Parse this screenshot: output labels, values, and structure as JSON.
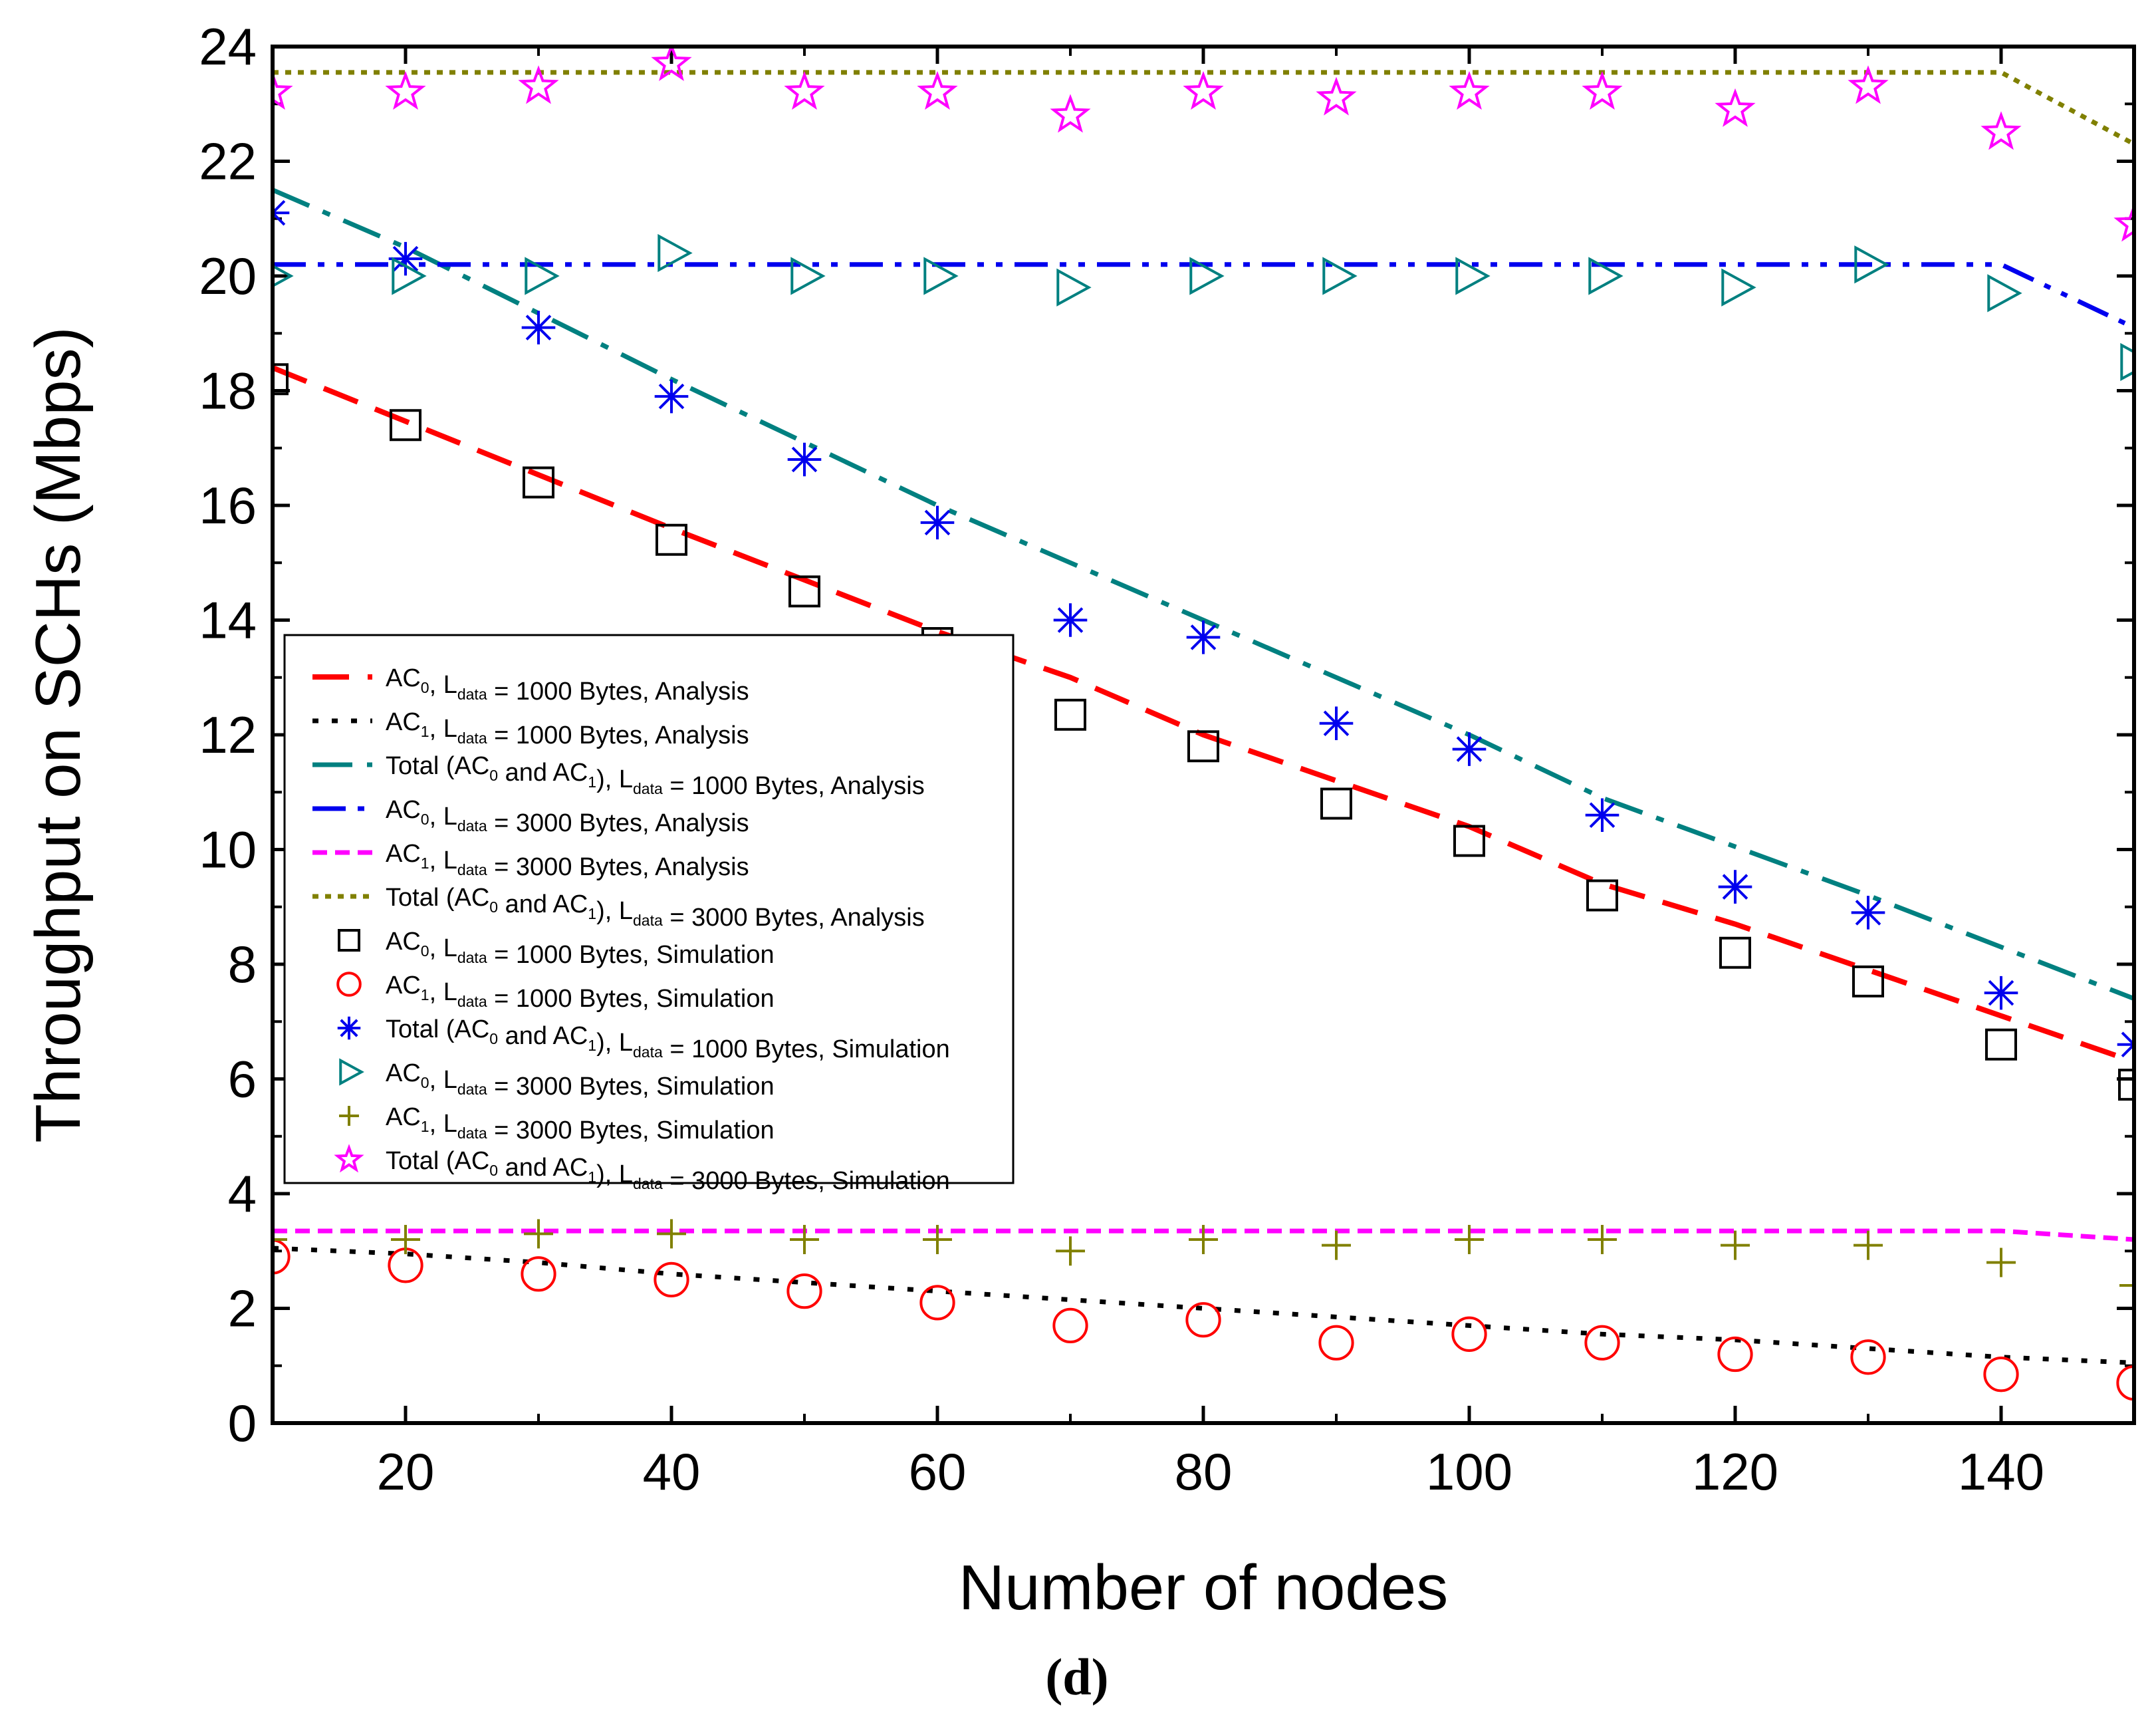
{
  "chart_data": {
    "type": "line",
    "title": "",
    "caption": "(d)",
    "xlabel": "Number of nodes",
    "ylabel": "Throughput on SCHs (Mbps)",
    "xlim": [
      10,
      150
    ],
    "ylim": [
      0,
      24
    ],
    "xticks": [
      20,
      40,
      60,
      80,
      100,
      120,
      140
    ],
    "yticks": [
      0,
      2,
      4,
      6,
      8,
      10,
      12,
      14,
      16,
      18,
      20,
      22,
      24
    ],
    "legend_position": "center-left",
    "x_sim": [
      10,
      20,
      30,
      40,
      50,
      60,
      70,
      80,
      90,
      100,
      110,
      120,
      130,
      140,
      150
    ],
    "series": [
      {
        "id": "ac0_1000_analysis",
        "kind": "line",
        "dash": "dash",
        "color": "#ff0000",
        "legend": {
          "pre": "AC",
          "sub1": "0",
          "mid": ",  L",
          "sub2": "data",
          "post": " = 1000 Bytes, Analysis"
        },
        "x": [
          10,
          40,
          60,
          70,
          80,
          90,
          100,
          110,
          120,
          140,
          150
        ],
        "y": [
          18.4,
          15.6,
          13.8,
          13.0,
          12.0,
          11.2,
          10.4,
          9.4,
          8.7,
          7.1,
          6.3
        ]
      },
      {
        "id": "ac1_1000_analysis",
        "kind": "line",
        "dash": "dot",
        "color": "#000000",
        "legend": {
          "pre": "AC",
          "sub1": "1",
          "mid": ", L",
          "sub2": "data",
          "post": " = 1000 Bytes, Analysis"
        },
        "x": [
          10,
          20,
          30,
          40,
          50,
          60,
          70,
          80,
          90,
          100,
          110,
          120,
          130,
          140,
          150
        ],
        "y": [
          3.05,
          2.95,
          2.8,
          2.6,
          2.45,
          2.3,
          2.15,
          2.0,
          1.85,
          1.7,
          1.55,
          1.45,
          1.3,
          1.15,
          1.05
        ]
      },
      {
        "id": "total_1000_analysis",
        "kind": "line",
        "dash": "dashdot",
        "color": "#008080",
        "legend": {
          "pre": "Total (AC",
          "sub1": "0",
          "mid": " and AC",
          "sub1b": "1",
          "mid2": "), L",
          "sub2": "data",
          "post": " = 1000 Bytes, Analysis"
        },
        "x": [
          10,
          20,
          40,
          60,
          80,
          100,
          110,
          130,
          150
        ],
        "y": [
          21.5,
          20.5,
          18.2,
          16.0,
          14.0,
          12.0,
          10.9,
          9.2,
          7.4
        ]
      },
      {
        "id": "ac0_3000_analysis",
        "kind": "line",
        "dash": "dashdotdot",
        "color": "#0000ee",
        "legend": {
          "pre": "AC",
          "sub1": "0",
          "mid": ", L",
          "sub2": "data",
          "post": " = 3000 Bytes, Analysis"
        },
        "x": [
          10,
          140,
          150
        ],
        "y": [
          20.2,
          20.2,
          19.1
        ]
      },
      {
        "id": "ac1_3000_analysis",
        "kind": "line",
        "dash": "shortdash",
        "color": "#ff00ff",
        "legend": {
          "pre": "AC",
          "sub1": "1",
          "mid": ", L",
          "sub2": "data",
          "post": " = 3000 Bytes, Analysis"
        },
        "x": [
          10,
          140,
          150
        ],
        "y": [
          3.35,
          3.35,
          3.2
        ]
      },
      {
        "id": "total_3000_analysis",
        "kind": "line",
        "dash": "shortdot",
        "color": "#808000",
        "legend": {
          "pre": "Total (AC",
          "sub1": "0",
          "mid": " and AC",
          "sub1b": "1",
          "mid2": "), L",
          "sub2": "data",
          "post": " = 3000 Bytes, Analysis"
        },
        "x": [
          10,
          140,
          150
        ],
        "y": [
          23.55,
          23.55,
          22.3
        ]
      },
      {
        "id": "ac0_1000_sim",
        "kind": "marker",
        "marker": "square",
        "color": "#000000",
        "legend": {
          "pre": "AC",
          "sub1": "0",
          "mid": ", L",
          "sub2": "data",
          "post": " = 1000 Bytes, Simulation"
        },
        "y": [
          18.2,
          17.4,
          16.4,
          15.4,
          14.5,
          13.6,
          12.35,
          11.8,
          10.8,
          10.15,
          9.2,
          8.2,
          7.7,
          6.6,
          5.9
        ]
      },
      {
        "id": "ac1_1000_sim",
        "kind": "marker",
        "marker": "circle",
        "color": "#ff0000",
        "legend": {
          "pre": "AC",
          "sub1": "1",
          "mid": ",  L",
          "sub2": "data",
          "post": " = 1000 Bytes, Simulation"
        },
        "y": [
          2.9,
          2.75,
          2.6,
          2.5,
          2.3,
          2.1,
          1.7,
          1.8,
          1.4,
          1.55,
          1.4,
          1.2,
          1.15,
          0.85,
          0.7
        ]
      },
      {
        "id": "total_1000_sim",
        "kind": "marker",
        "marker": "asterisk",
        "color": "#0000ee",
        "legend": {
          "pre": "Total (AC",
          "sub1": "0",
          "mid": " and AC",
          "sub1b": "1",
          "mid2": "),  L",
          "sub2": "data",
          "post": " = 1000 Bytes,  Simulation"
        },
        "y": [
          21.1,
          20.3,
          19.1,
          17.9,
          16.8,
          15.7,
          14.0,
          13.7,
          12.2,
          11.75,
          10.6,
          9.35,
          8.9,
          7.5,
          6.6
        ]
      },
      {
        "id": "ac0_3000_sim",
        "kind": "marker",
        "marker": "triangle-right",
        "color": "#008080",
        "legend": {
          "pre": "AC",
          "sub1": "0",
          "mid": ", L",
          "sub2": "data",
          "post": " = 3000 Bytes, Simulation"
        },
        "y": [
          20.0,
          20.0,
          20.0,
          20.4,
          20.0,
          20.0,
          19.8,
          20.0,
          20.0,
          20.0,
          20.0,
          19.8,
          20.2,
          19.7,
          18.5
        ]
      },
      {
        "id": "ac1_3000_sim",
        "kind": "marker",
        "marker": "plus",
        "color": "#808000",
        "legend": {
          "pre": "AC",
          "sub1": "1",
          "mid": ", L",
          "sub2": "data",
          "post": " = 3000 Bytes,  Simulation"
        },
        "y": [
          3.2,
          3.2,
          3.3,
          3.3,
          3.2,
          3.2,
          3.0,
          3.2,
          3.1,
          3.2,
          3.2,
          3.1,
          3.1,
          2.8,
          2.4
        ]
      },
      {
        "id": "total_3000_sim",
        "kind": "marker",
        "marker": "star",
        "color": "#ff00ff",
        "legend": {
          "pre": "Total (AC",
          "sub1": "0",
          "mid": " and AC",
          "sub1b": "1",
          "mid2": "), L",
          "sub2": "data",
          "post": " = 3000 Bytes, Simulation"
        },
        "y": [
          23.2,
          23.2,
          23.3,
          23.7,
          23.2,
          23.2,
          22.8,
          23.2,
          23.1,
          23.2,
          23.2,
          22.9,
          23.3,
          22.5,
          20.9
        ]
      }
    ]
  }
}
